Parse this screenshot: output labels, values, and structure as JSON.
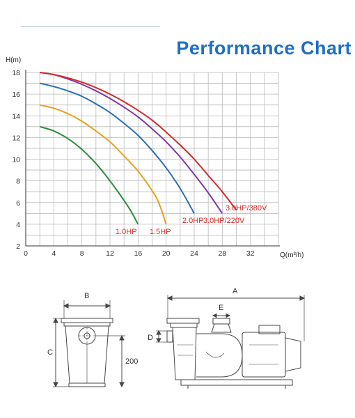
{
  "page": {
    "title": "Performance Chart"
  },
  "chart_data": {
    "type": "line",
    "title": "Performance Chart",
    "xlabel": "Q(m³/h)",
    "ylabel": "H(m)",
    "xlim": [
      0,
      36
    ],
    "ylim": [
      2,
      18
    ],
    "x_ticks": [
      0,
      4,
      8,
      12,
      16,
      20,
      24,
      28,
      32
    ],
    "y_ticks": [
      2,
      4,
      6,
      8,
      10,
      12,
      14,
      16,
      18
    ],
    "grid": true,
    "series": [
      {
        "name": "1.0HP",
        "color": "#2e8b3a",
        "x": [
          2,
          4,
          6,
          8,
          10,
          12,
          14,
          15,
          16
        ],
        "y": [
          13,
          12.6,
          11.9,
          10.9,
          9.6,
          8.0,
          6.2,
          5.2,
          4
        ]
      },
      {
        "name": "1.5HP",
        "color": "#e6a11f",
        "x": [
          2,
          4,
          6,
          8,
          10,
          12,
          14,
          16,
          18,
          19,
          20
        ],
        "y": [
          15,
          14.7,
          14.2,
          13.5,
          12.6,
          11.6,
          10.3,
          8.9,
          7.1,
          5.9,
          4
        ]
      },
      {
        "name": "2.0HP",
        "color": "#2d6fb5",
        "x": [
          2,
          4,
          6,
          8,
          10,
          12,
          14,
          16,
          18,
          20,
          22,
          24
        ],
        "y": [
          17,
          16.7,
          16.3,
          15.8,
          15.1,
          14.3,
          13.3,
          12.2,
          10.8,
          9.2,
          7.3,
          5
        ]
      },
      {
        "name": "3.0HP/220V",
        "color": "#7b3aa6",
        "x": [
          2,
          4,
          6,
          8,
          10,
          12,
          14,
          16,
          18,
          20,
          22,
          24,
          26,
          28
        ],
        "y": [
          18,
          17.8,
          17.4,
          16.9,
          16.3,
          15.6,
          14.8,
          13.9,
          12.8,
          11.6,
          10.2,
          8.6,
          6.9,
          5
        ]
      },
      {
        "name": "3.0HP/380V",
        "color": "#d62a2a",
        "x": [
          2,
          4,
          6,
          8,
          10,
          12,
          14,
          16,
          18,
          20,
          22,
          24,
          26,
          28,
          30
        ],
        "y": [
          18,
          17.8,
          17.5,
          17.1,
          16.6,
          16.0,
          15.3,
          14.5,
          13.6,
          12.5,
          11.3,
          10.0,
          8.5,
          7.0,
          5.3
        ]
      }
    ],
    "labels": [
      {
        "text": "1.0HP",
        "color": "#d62a2a"
      },
      {
        "text": "1.5HP",
        "color": "#d62a2a"
      },
      {
        "text": "2.0HP",
        "color": "#d62a2a"
      },
      {
        "text": "3.0HP/220V",
        "color": "#d62a2a"
      },
      {
        "text": "3.0HP/380V",
        "color": "#d62a2a"
      }
    ]
  },
  "drawings": {
    "front_width_label": "B",
    "front_height_label": "C",
    "front_inlet_height_label": "200",
    "side_length_label": "A",
    "side_outlet_label": "E",
    "side_outlet_dia_label": "D"
  }
}
